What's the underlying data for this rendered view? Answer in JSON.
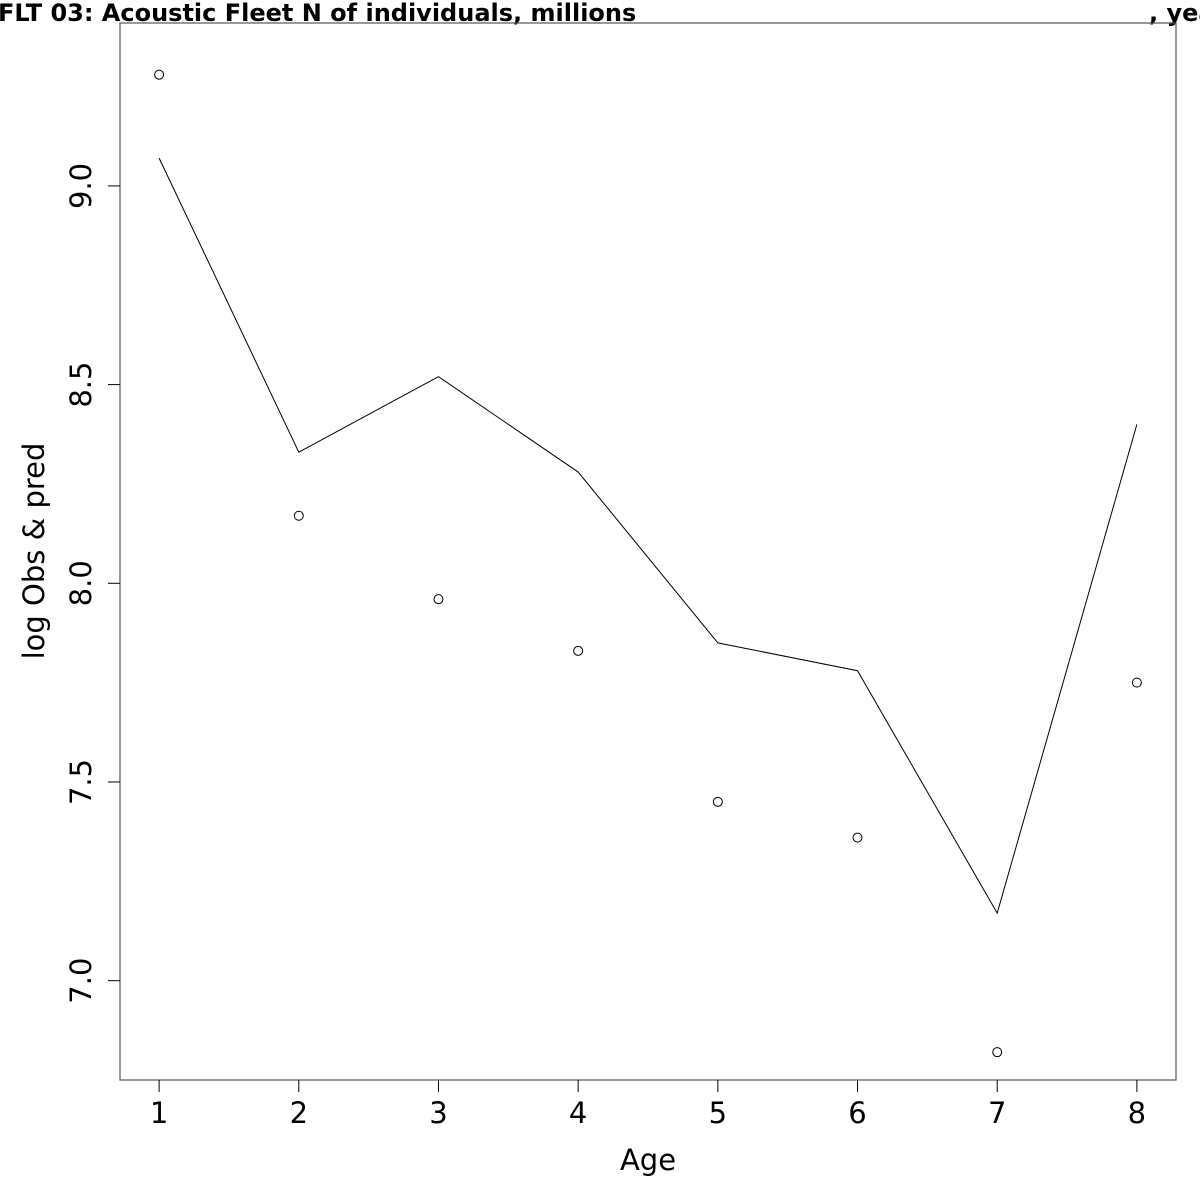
{
  "chart_data": {
    "type": "line",
    "title_parts": [
      "FLT 03: Acoustic Fleet   N of individuals, millions",
      ", yea"
    ],
    "xlabel": "Age",
    "ylabel": "log Obs & pred",
    "x": [
      1,
      2,
      3,
      4,
      5,
      6,
      7,
      8
    ],
    "xlim": [
      0.72,
      8.28
    ],
    "ylim": [
      6.75,
      9.41
    ],
    "xticks": [
      "1",
      "2",
      "3",
      "4",
      "5",
      "6",
      "7",
      "8"
    ],
    "yticks": [
      "7.0",
      "7.5",
      "8.0",
      "8.5",
      "9.0"
    ],
    "series": [
      {
        "style": "line",
        "values": [
          9.07,
          8.33,
          8.52,
          8.28,
          7.85,
          7.78,
          7.17,
          8.4
        ]
      },
      {
        "style": "points",
        "values": [
          9.28,
          8.17,
          7.96,
          7.83,
          7.45,
          7.36,
          6.82,
          7.75
        ]
      }
    ]
  }
}
